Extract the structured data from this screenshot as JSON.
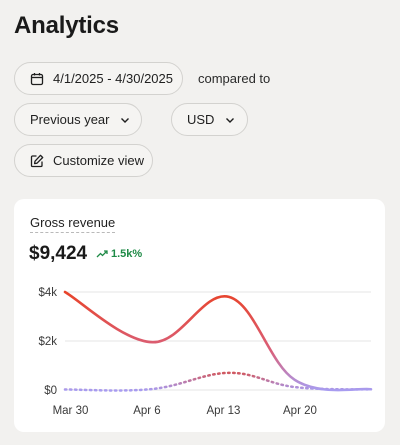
{
  "page": {
    "title": "Analytics"
  },
  "filters": {
    "date_range": "4/1/2025 - 4/30/2025",
    "compared_to_label": "compared to",
    "comparison": "Previous year",
    "currency": "USD",
    "customize_label": "Customize view"
  },
  "card": {
    "title": "Gross revenue",
    "value": "$9,424",
    "delta": "1.5k%",
    "delta_color": "#1e8a46"
  },
  "colors": {
    "current_line_start": "#e8432a",
    "current_line_end": "#a89cf0",
    "previous_line": "#e23a20",
    "previous_line_base": "#a89cf0"
  },
  "chart_data": {
    "type": "line",
    "y_ticks": [
      "$4k",
      "$2k",
      "$0"
    ],
    "y_tick_values": [
      4000,
      2000,
      0
    ],
    "ylim": [
      0,
      4000
    ],
    "x_ticks": [
      "Mar 30",
      "Apr 6",
      "Apr 13",
      "Apr 20"
    ],
    "x_tick_days": [
      0,
      7,
      14,
      21
    ],
    "xlim": [
      -0.5,
      27.5
    ],
    "grid": true,
    "series": [
      {
        "style": "solid",
        "points": [
          [
            -0.5,
            4000
          ],
          [
            7.5,
            1950
          ],
          [
            14.5,
            3800
          ],
          [
            20.5,
            420
          ],
          [
            27.5,
            30
          ]
        ]
      },
      {
        "style": "dotted",
        "points": [
          [
            -0.5,
            20
          ],
          [
            7.5,
            40
          ],
          [
            14.5,
            700
          ],
          [
            20.5,
            120
          ],
          [
            27.5,
            20
          ]
        ]
      }
    ]
  }
}
